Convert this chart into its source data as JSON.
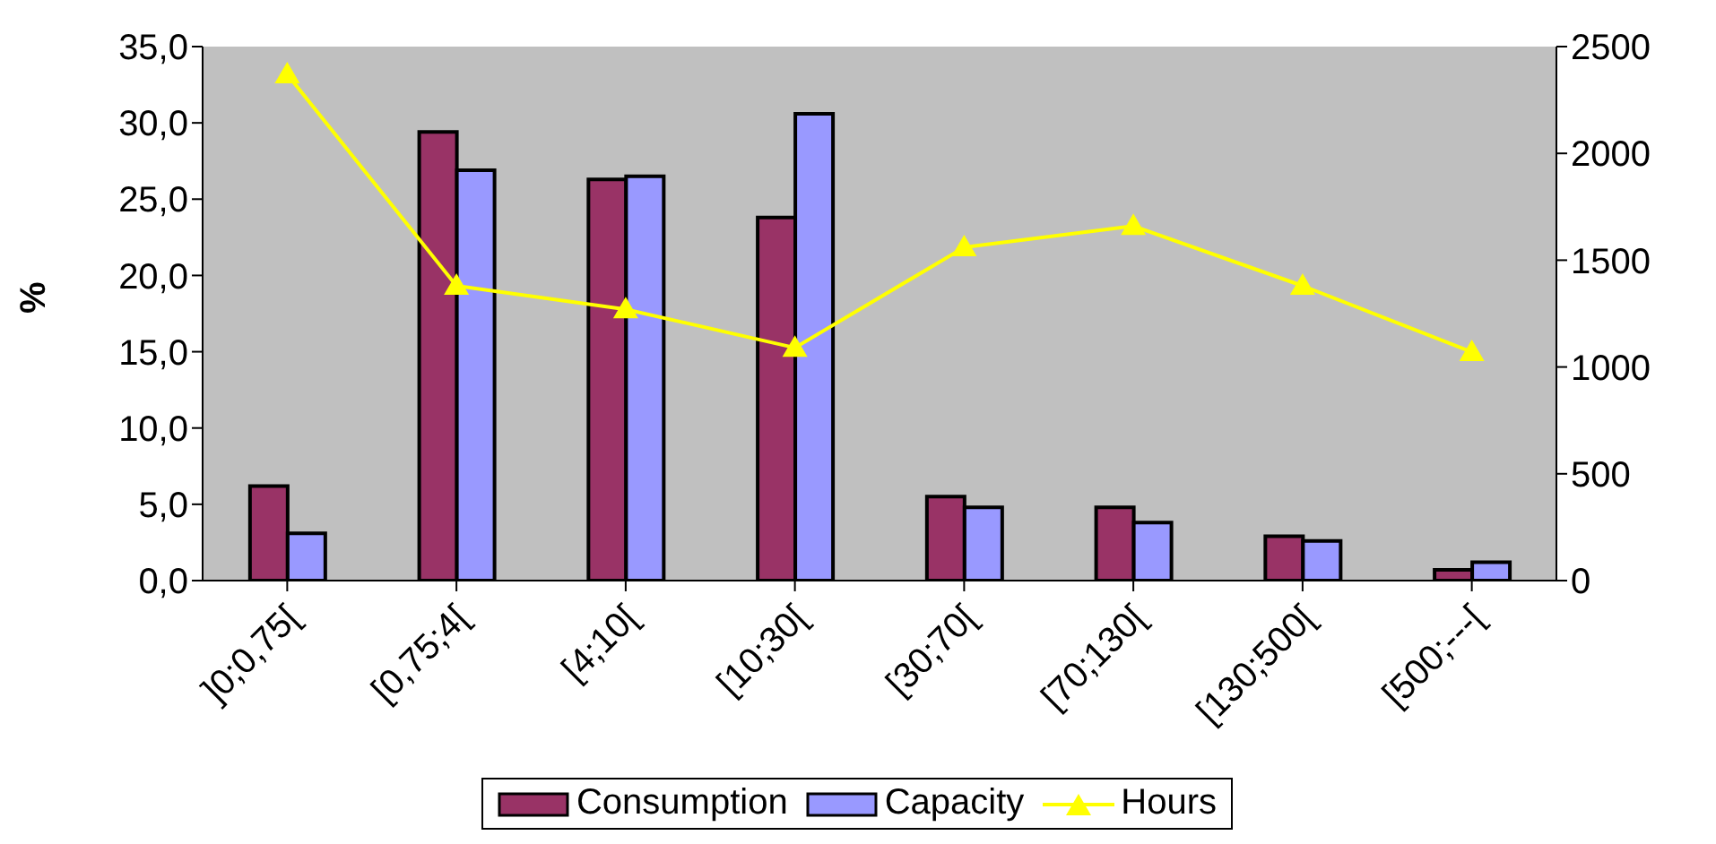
{
  "chart_data": {
    "type": "bar",
    "ylabel": "%",
    "categories": [
      "]0;0,75[",
      "[0,75;4[",
      "[4;10[",
      "[10;30[",
      "[30;70[",
      "[70;130[",
      "[130;500[",
      "[500;---["
    ],
    "series": [
      {
        "name": "Consumption",
        "color": "#993366",
        "values": [
          6.2,
          29.4,
          26.3,
          23.8,
          5.5,
          4.8,
          2.9,
          0.7
        ]
      },
      {
        "name": "Capacity",
        "color": "#9999ff",
        "values": [
          3.1,
          26.9,
          26.5,
          30.6,
          4.8,
          3.8,
          2.6,
          1.2
        ]
      },
      {
        "name": "Hours",
        "type": "line",
        "axis": "y2",
        "color": "#ffff00",
        "marker": "triangle",
        "values": [
          2370,
          1380,
          1270,
          1090,
          1560,
          1660,
          1380,
          1070
        ]
      }
    ],
    "ylim": [
      0,
      35
    ],
    "yticks": [
      {
        "value": 0,
        "label": "0,0"
      },
      {
        "value": 5,
        "label": "5,0"
      },
      {
        "value": 10,
        "label": "10,0"
      },
      {
        "value": 15,
        "label": "15,0"
      },
      {
        "value": 20,
        "label": "20,0"
      },
      {
        "value": 25,
        "label": "25,0"
      },
      {
        "value": 30,
        "label": "30,0"
      },
      {
        "value": 35,
        "label": "35,0"
      }
    ],
    "y2lim": [
      0,
      2500
    ],
    "y2ticks": [
      0,
      500,
      1000,
      1500,
      2000,
      2500
    ],
    "grid": false,
    "legend": "bottom"
  }
}
